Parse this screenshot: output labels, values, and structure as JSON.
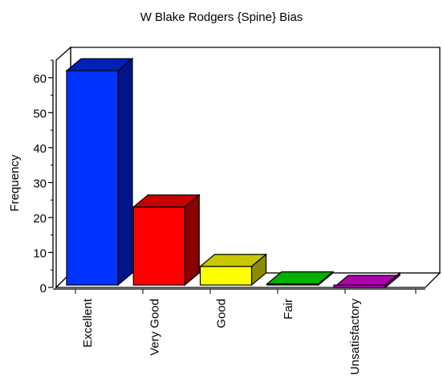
{
  "chart_data": {
    "type": "bar",
    "title": "W Blake Rodgers {Spine} Bias",
    "xlabel": "",
    "ylabel": "Frequency",
    "categories": [
      "Excellent",
      "Very Good",
      "Good",
      "Fair",
      "Unsatisfactory"
    ],
    "values": [
      62,
      23,
      6,
      1,
      0
    ],
    "ylim": [
      0,
      65
    ],
    "yticks": [
      0,
      10,
      20,
      30,
      40,
      50,
      60
    ],
    "grid": false,
    "three_d": true,
    "bar_colors": [
      {
        "front": "#0033ff",
        "top": "#0020b8",
        "side": "#00158a"
      },
      {
        "front": "#ff0000",
        "top": "#c80000",
        "side": "#8a0000"
      },
      {
        "front": "#ffff00",
        "top": "#c8c800",
        "side": "#8c8c00"
      },
      {
        "front": "#00c800",
        "top": "#00b000",
        "side": "#007a00"
      },
      {
        "front": "#cc00cc",
        "top": "#b000b0",
        "side": "#7a007a"
      }
    ]
  }
}
